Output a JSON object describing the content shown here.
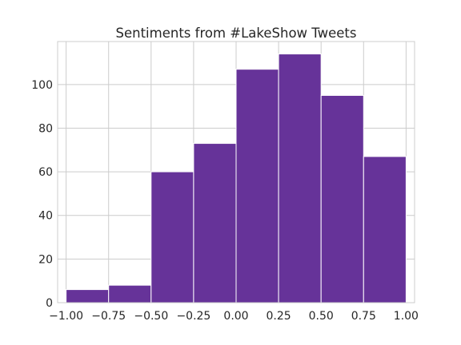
{
  "chart_data": {
    "type": "bar",
    "title": "Sentiments from #LakeShow Tweets",
    "xlabel": "",
    "ylabel": "",
    "bin_edges": [
      -1.0,
      -0.75,
      -0.5,
      -0.25,
      0.0,
      0.25,
      0.5,
      0.75,
      1.0
    ],
    "values": [
      6,
      8,
      60,
      73,
      107,
      114,
      95,
      67
    ],
    "xlim": [
      -1.05,
      1.05
    ],
    "ylim": [
      0,
      119.7
    ],
    "xticks": [
      -1.0,
      -0.75,
      -0.5,
      -0.25,
      0.0,
      0.25,
      0.5,
      0.75,
      1.0
    ],
    "xtick_labels": [
      "−1.00",
      "−0.75",
      "−0.50",
      "−0.25",
      "0.00",
      "0.25",
      "0.50",
      "0.75",
      "1.00"
    ],
    "yticks": [
      0,
      20,
      40,
      60,
      80,
      100
    ],
    "ytick_labels": [
      "0",
      "20",
      "40",
      "60",
      "80",
      "100"
    ],
    "bar_color": "#663399",
    "grid": true
  }
}
